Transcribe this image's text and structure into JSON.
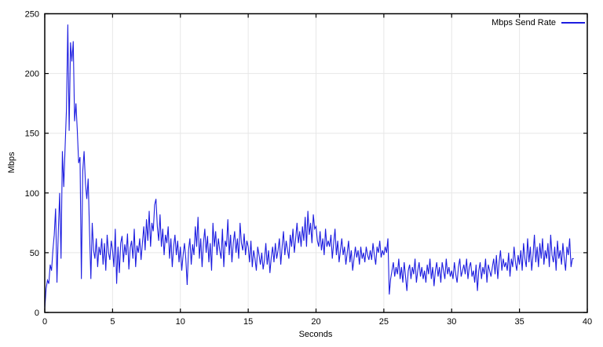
{
  "page": {
    "background": "#ffffff"
  },
  "chart_data": {
    "type": "line",
    "title": "",
    "xlabel": "Seconds",
    "ylabel": "Mbps",
    "xlim": [
      0,
      40
    ],
    "ylim": [
      0,
      250
    ],
    "x_ticks": [
      0,
      5,
      10,
      15,
      20,
      25,
      30,
      35,
      40
    ],
    "y_ticks": [
      0,
      50,
      100,
      150,
      200,
      250
    ],
    "grid": true,
    "legend_position": "top-right",
    "axis_color": "#000000",
    "grid_color": "#e7e7e7",
    "series": [
      {
        "name": "Mbps Send Rate",
        "color": "#1d1de0",
        "x_start": 0,
        "x_step": 0.1,
        "values": [
          3,
          20,
          27,
          24,
          40,
          35,
          52,
          65,
          87,
          25,
          68,
          100,
          45,
          135,
          105,
          138,
          170,
          241,
          152,
          226,
          210,
          227,
          160,
          175,
          152,
          125,
          130,
          28,
          118,
          135,
          108,
          95,
          112,
          68,
          28,
          75,
          52,
          45,
          62,
          38,
          55,
          48,
          62,
          40,
          58,
          35,
          65,
          50,
          44,
          60,
          52,
          38,
          70,
          24,
          55,
          33,
          58,
          64,
          42,
          57,
          48,
          66,
          36,
          54,
          60,
          45,
          70,
          38,
          56,
          50,
          62,
          44,
          58,
          72,
          52,
          78,
          60,
          85,
          55,
          75,
          68,
          90,
          95,
          72,
          60,
          82,
          55,
          70,
          48,
          65,
          58,
          72,
          45,
          62,
          38,
          55,
          65,
          48,
          60,
          42,
          55,
          35,
          48,
          58,
          45,
          23,
          52,
          62,
          40,
          57,
          48,
          72,
          55,
          80,
          45,
          62,
          38,
          58,
          70,
          50,
          64,
          42,
          58,
          35,
          75,
          55,
          68,
          48,
          62,
          52,
          45,
          70,
          38,
          60,
          55,
          78,
          48,
          65,
          42,
          58,
          68,
          50,
          62,
          45,
          75,
          58,
          52,
          66,
          48,
          60,
          55,
          42,
          60,
          38,
          52,
          45,
          35,
          55,
          48,
          40,
          50,
          36,
          44,
          58,
          40,
          52,
          33,
          46,
          55,
          42,
          58,
          45,
          52,
          62,
          40,
          55,
          68,
          48,
          60,
          52,
          45,
          65,
          55,
          70,
          50,
          62,
          75,
          58,
          68,
          55,
          72,
          60,
          80,
          55,
          85,
          65,
          75,
          58,
          82,
          70,
          72,
          60,
          55,
          68,
          52,
          62,
          48,
          70,
          55,
          60,
          55,
          65,
          45,
          58,
          70,
          48,
          60,
          42,
          52,
          62,
          48,
          55,
          40,
          50,
          60,
          42,
          52,
          35,
          45,
          55,
          46,
          52,
          40,
          55,
          45,
          50,
          42,
          55,
          48,
          44,
          52,
          44,
          58,
          48,
          40,
          55,
          50,
          60,
          46,
          52,
          48,
          55,
          50,
          62,
          15,
          28,
          35,
          42,
          30,
          38,
          32,
          45,
          28,
          38,
          25,
          42,
          30,
          18,
          35,
          40,
          28,
          38,
          32,
          45,
          25,
          35,
          42,
          30,
          38,
          28,
          35,
          25,
          40,
          32,
          45,
          28,
          38,
          22,
          35,
          42,
          30,
          38,
          25,
          42,
          35,
          28,
          45,
          32,
          38,
          30,
          35,
          28,
          42,
          32,
          25,
          38,
          45,
          30,
          35,
          40,
          32,
          45,
          28,
          38,
          42,
          30,
          35,
          25,
          40,
          18,
          35,
          42,
          28,
          38,
          32,
          45,
          25,
          40,
          35,
          30,
          38,
          45,
          32,
          48,
          28,
          42,
          52,
          35,
          45,
          38,
          42,
          35,
          50,
          30,
          45,
          38,
          55,
          42,
          35,
          48,
          40,
          52,
          35,
          58,
          45,
          38,
          62,
          42,
          55,
          35,
          48,
          65,
          42,
          55,
          38,
          58,
          45,
          62,
          40,
          52,
          45,
          58,
          38,
          65,
          48,
          42,
          55,
          35,
          60,
          45,
          52,
          40,
          58,
          45,
          35,
          55,
          48,
          62,
          38,
          45,
          45
        ]
      }
    ]
  }
}
